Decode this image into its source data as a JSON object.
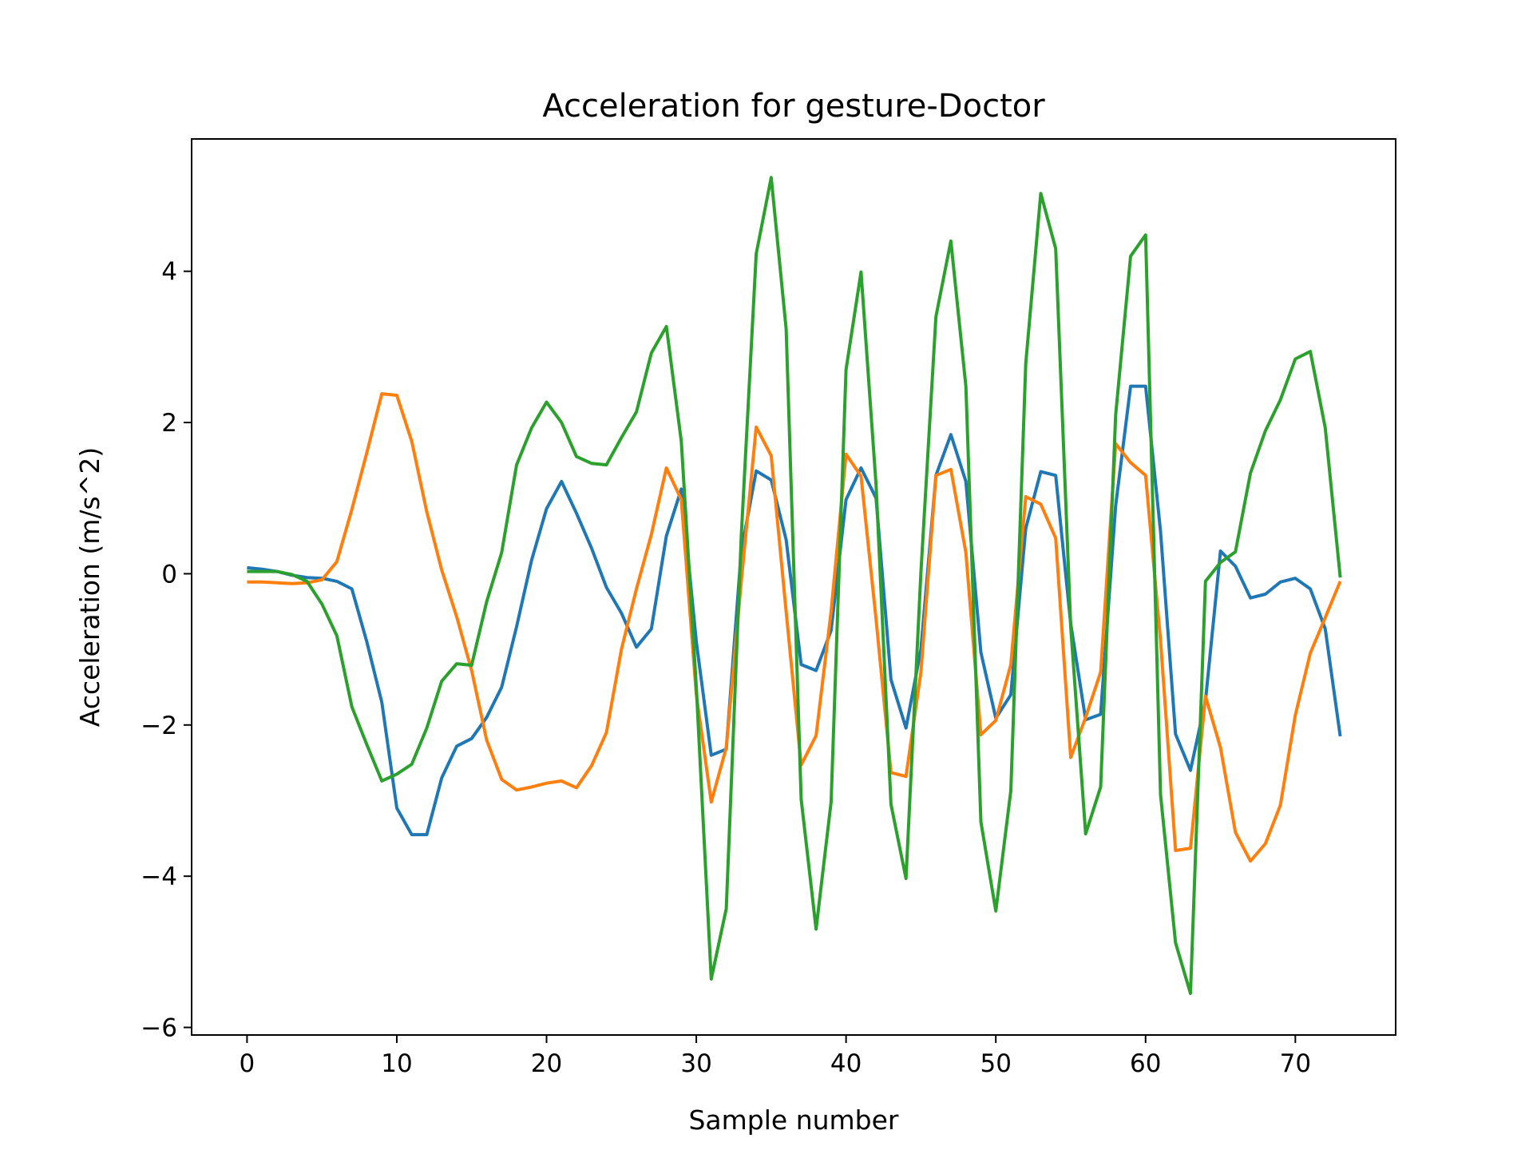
{
  "chart_data": {
    "type": "line",
    "title": "Acceleration for gesture-Doctor",
    "xlabel": "Sample number",
    "ylabel": "Acceleration (m/s^2)",
    "xlim": [
      -3.7,
      76.7
    ],
    "ylim": [
      -6.1,
      5.75
    ],
    "xticks": [
      0,
      10,
      20,
      30,
      40,
      50,
      60,
      70
    ],
    "yticks": [
      -6,
      -4,
      -2,
      0,
      2,
      4
    ],
    "xtick_labels": [
      "0",
      "10",
      "20",
      "30",
      "40",
      "50",
      "60",
      "70"
    ],
    "ytick_labels": [
      "−6",
      "−4",
      "−2",
      "0",
      "2",
      "4"
    ],
    "grid": false,
    "colors": [
      "#1f77b4",
      "#ff7f0e",
      "#2ca02c"
    ],
    "series": [
      {
        "values": [
          0.08,
          0.06,
          0.03,
          -0.02,
          -0.05,
          -0.06,
          -0.1,
          -0.2,
          -0.9,
          -1.7,
          -3.1,
          -3.45,
          -3.45,
          -2.7,
          -2.28,
          -2.18,
          -1.9,
          -1.5,
          -0.7,
          0.18,
          0.86,
          1.22,
          0.8,
          0.34,
          -0.18,
          -0.52,
          -0.97,
          -0.73,
          0.5,
          1.12,
          -0.9,
          -2.4,
          -2.32,
          0.3,
          1.36,
          1.24,
          0.45,
          -1.2,
          -1.28,
          -0.75,
          0.98,
          1.4,
          1.0,
          -1.4,
          -2.04,
          -1.0,
          1.3,
          1.84,
          1.22,
          -1.04,
          -1.91,
          -1.6,
          0.6,
          1.35,
          1.3,
          -0.66,
          -1.93,
          -1.86,
          0.9,
          2.48,
          2.48,
          0.56,
          -2.12,
          -2.6,
          -1.68,
          0.3,
          0.1,
          -0.32,
          -0.27,
          -0.11,
          -0.06,
          -0.2,
          -0.73,
          -2.15
        ]
      },
      {
        "values": [
          -0.11,
          -0.11,
          -0.12,
          -0.13,
          -0.12,
          -0.08,
          0.16,
          0.85,
          1.6,
          2.38,
          2.36,
          1.75,
          0.82,
          0.05,
          -0.57,
          -1.28,
          -2.2,
          -2.72,
          -2.86,
          -2.82,
          -2.77,
          -2.74,
          -2.83,
          -2.54,
          -2.1,
          -1.0,
          -0.2,
          0.52,
          1.4,
          0.98,
          -1.6,
          -3.02,
          -2.3,
          -0.1,
          1.94,
          1.56,
          -0.5,
          -2.53,
          -2.14,
          -0.5,
          1.58,
          1.29,
          -0.6,
          -2.63,
          -2.68,
          -1.3,
          1.3,
          1.38,
          0.28,
          -2.13,
          -1.94,
          -1.2,
          1.02,
          0.92,
          0.47,
          -2.43,
          -1.9,
          -1.3,
          1.72,
          1.47,
          1.3,
          -0.88,
          -3.66,
          -3.63,
          -1.62,
          -2.3,
          -3.42,
          -3.8,
          -3.57,
          -3.06,
          -1.87,
          -1.05,
          -0.58,
          -0.1
        ]
      },
      {
        "values": [
          0.03,
          0.03,
          0.03,
          -0.01,
          -0.1,
          -0.4,
          -0.82,
          -1.76,
          -2.26,
          -2.74,
          -2.65,
          -2.52,
          -2.04,
          -1.42,
          -1.19,
          -1.21,
          -0.37,
          0.28,
          1.44,
          1.93,
          2.27,
          2.0,
          1.55,
          1.46,
          1.44,
          1.8,
          2.14,
          2.92,
          3.27,
          1.75,
          -1.5,
          -5.36,
          -4.43,
          0.5,
          4.23,
          5.24,
          3.24,
          -2.98,
          -4.7,
          -3.02,
          2.7,
          3.99,
          1.18,
          -3.05,
          -4.03,
          0.02,
          3.4,
          4.4,
          2.48,
          -3.28,
          -4.46,
          -2.87,
          2.78,
          5.03,
          4.3,
          -0.7,
          -3.44,
          -2.82,
          2.1,
          4.2,
          4.48,
          -2.92,
          -4.88,
          -5.55,
          -0.1,
          0.15,
          0.29,
          1.33,
          1.89,
          2.3,
          2.84,
          2.94,
          1.93,
          -0.05
        ]
      }
    ]
  }
}
